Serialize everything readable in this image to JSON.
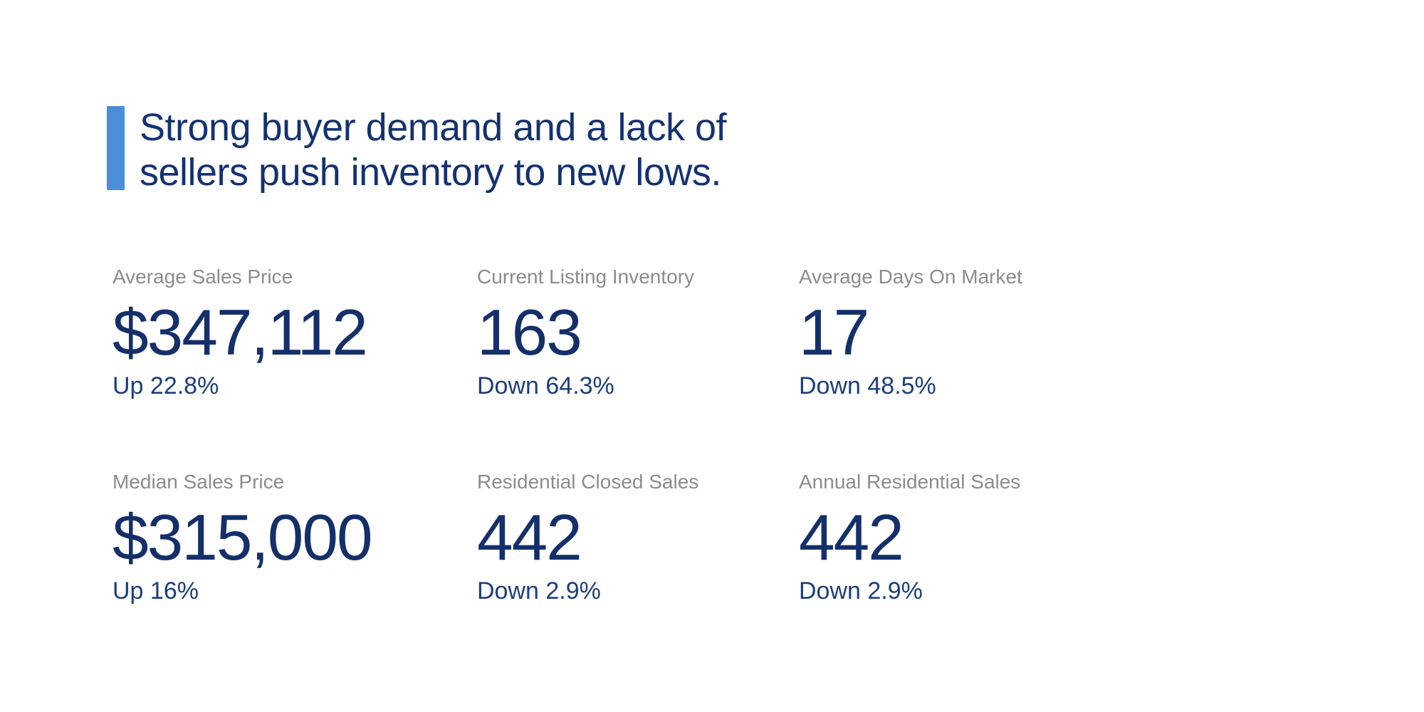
{
  "colors": {
    "background": "#ffffff",
    "accent_bar": "#4a8dd9",
    "headline_text": "#143271",
    "stat_label": "#8c8c8c",
    "stat_value": "#142f6a",
    "stat_change": "#1d3e7c"
  },
  "headline": {
    "full_text": "Strong buyer demand and a lack of sellers push inventory to new lows.",
    "lines": [
      "Strong buyer demand and a lack of",
      "sellers push inventory to new lows."
    ]
  },
  "stats": [
    {
      "label": "Average Sales Price",
      "value": "$347,112",
      "change": "Up 22.8%"
    },
    {
      "label": "Current Listing Inventory",
      "value": "163",
      "change": "Down 64.3%"
    },
    {
      "label": "Average Days On Market",
      "value": "17",
      "change": "Down 48.5%"
    },
    {
      "label": "Median Sales Price",
      "value": "$315,000",
      "change": "Up 16%"
    },
    {
      "label": "Residential Closed Sales",
      "value": "442",
      "change": "Down 2.9%"
    },
    {
      "label": "Annual Residential Sales",
      "value": "442",
      "change": "Down 2.9%"
    }
  ]
}
